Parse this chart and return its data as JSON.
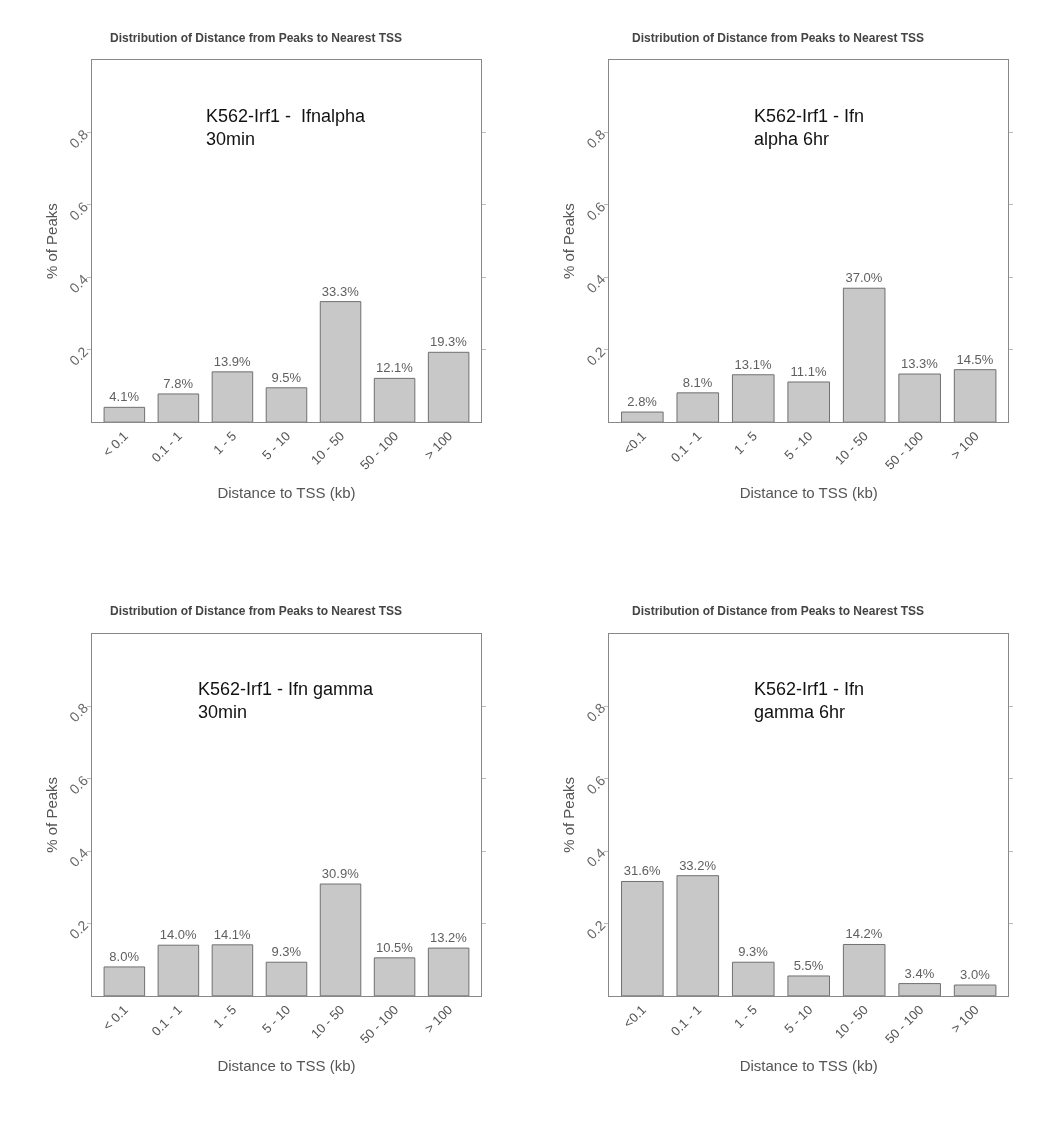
{
  "chart_data": [
    {
      "type": "bar",
      "title": "Distribution of Distance from Peaks to Nearest TSS",
      "xlabel": "Distance to TSS (kb)",
      "ylabel": "% of Peaks",
      "annotations": [
        "K562-Irf1 -  Ifnalpha\n30min"
      ],
      "categories": [
        "< 0.1",
        "0.1 - 1",
        "1 - 5",
        "5 - 10",
        "10 - 50",
        "50 - 100",
        "> 100"
      ],
      "values": [
        0.041,
        0.078,
        0.139,
        0.095,
        0.333,
        0.121,
        0.193
      ],
      "value_labels": [
        "4.1%",
        "7.8%",
        "13.9%",
        "9.5%",
        "33.3%",
        "12.1%",
        "19.3%"
      ],
      "color": "#c8c8c8",
      "ylim": [
        0,
        1.0
      ],
      "yticks": [
        0.2,
        0.4,
        0.6,
        0.8
      ]
    },
    {
      "type": "bar",
      "title": "Distribution of Distance from Peaks to Nearest TSS",
      "xlabel": "Distance to TSS (kb)",
      "ylabel": "% of Peaks",
      "annotations": [
        "K562-Irf1 - Ifn\nalpha 6hr"
      ],
      "categories": [
        "<0.1",
        "0.1 - 1",
        "1 - 5",
        "5 - 10",
        "10 - 50",
        "50 - 100",
        "> 100"
      ],
      "values": [
        0.028,
        0.081,
        0.131,
        0.111,
        0.37,
        0.133,
        0.145
      ],
      "value_labels": [
        "2.8%",
        "8.1%",
        "13.1%",
        "11.1%",
        "37.0%",
        "13.3%",
        "14.5%"
      ],
      "color": "#c8c8c8",
      "ylim": [
        0,
        1.0
      ],
      "yticks": [
        0.2,
        0.4,
        0.6,
        0.8
      ]
    },
    {
      "type": "bar",
      "title": "Distribution of Distance from Peaks to Nearest TSS",
      "xlabel": "Distance to TSS (kb)",
      "ylabel": "% of Peaks",
      "annotations": [
        "K562-Irf1 - Ifn gamma\n30min"
      ],
      "categories": [
        "< 0.1",
        "0.1 - 1",
        "1 - 5",
        "5 - 10",
        "10 - 50",
        "50 - 100",
        "> 100"
      ],
      "values": [
        0.08,
        0.14,
        0.141,
        0.093,
        0.309,
        0.105,
        0.132
      ],
      "value_labels": [
        "8.0%",
        "14.0%",
        "14.1%",
        "9.3%",
        "30.9%",
        "10.5%",
        "13.2%"
      ],
      "color": "#c8c8c8",
      "ylim": [
        0,
        1.0
      ],
      "yticks": [
        0.2,
        0.4,
        0.6,
        0.8
      ]
    },
    {
      "type": "bar",
      "title": "Distribution of Distance from Peaks to Nearest TSS",
      "xlabel": "Distance to TSS (kb)",
      "ylabel": "% of Peaks",
      "annotations": [
        "K562-Irf1 - Ifn\ngamma 6hr"
      ],
      "categories": [
        "<0.1",
        "0.1 - 1",
        "1 - 5",
        "5 - 10",
        "10 - 50",
        "50 - 100",
        "> 100"
      ],
      "values": [
        0.316,
        0.332,
        0.093,
        0.055,
        0.142,
        0.034,
        0.03
      ],
      "value_labels": [
        "31.6%",
        "33.2%",
        "9.3%",
        "5.5%",
        "14.2%",
        "3.4%",
        "3.0%"
      ],
      "color": "#c8c8c8",
      "ylim": [
        0,
        1.0
      ],
      "yticks": [
        0.2,
        0.4,
        0.6,
        0.8
      ]
    }
  ]
}
